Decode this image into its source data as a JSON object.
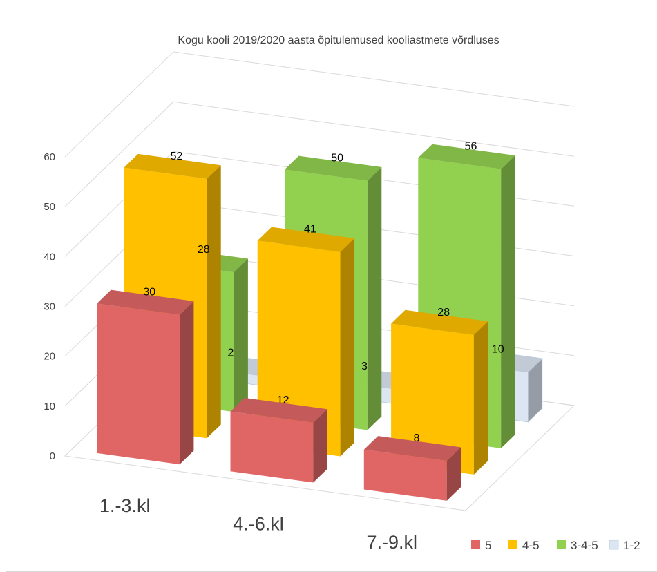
{
  "chart_data": {
    "type": "bar",
    "title": "Kogu kooli 2019/2020 aasta õpitulemused kooliastmete võrdluses",
    "categories": [
      "1.-3.kl",
      "4.-6.kl",
      "7.-9.kl"
    ],
    "series": [
      {
        "name": "5",
        "values": [
          30,
          12,
          8
        ],
        "color": "#e06666"
      },
      {
        "name": "4-5",
        "values": [
          52,
          41,
          28
        ],
        "color": "#ffc000"
      },
      {
        "name": "3-4-5",
        "values": [
          28,
          50,
          56
        ],
        "color": "#92d050"
      },
      {
        "name": "1-2",
        "values": [
          2,
          3,
          10
        ],
        "color": "#dce6f2"
      }
    ],
    "y_ticks": [
      "0",
      "10",
      "20",
      "30",
      "40",
      "50",
      "60"
    ],
    "ylim": [
      0,
      60
    ],
    "grid": true,
    "legend_position": "bottom-right",
    "is_3d": true
  }
}
